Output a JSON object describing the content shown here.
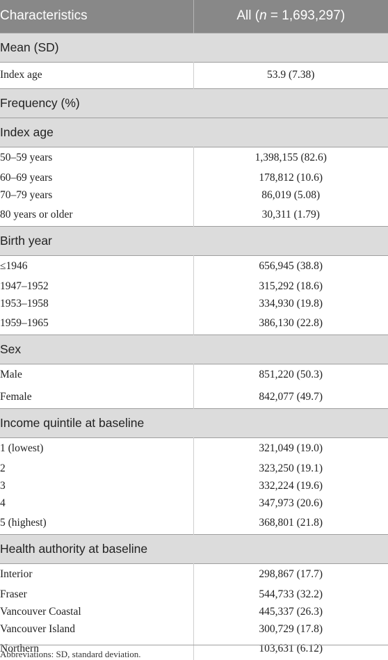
{
  "header": {
    "col1": "Characteristics",
    "col2_prefix": "All (",
    "col2_n": "n",
    "col2_suffix": " = 1,693,297)"
  },
  "mean_section": {
    "label": "Mean (SD)",
    "rows": [
      {
        "label": "Index age",
        "value": "53.9 (7.38)"
      }
    ]
  },
  "frequency_label": "Frequency (%)",
  "groups": [
    {
      "label": "Index age",
      "rows": [
        {
          "label": "50–59 years",
          "value": "1,398,155 (82.6)"
        },
        {
          "label": "60–69 years",
          "value": "178,812 (10.6)"
        },
        {
          "label": "70–79 years",
          "value": "86,019 (5.08)"
        },
        {
          "label": "80 years or older",
          "value": "30,311 (1.79)"
        }
      ]
    },
    {
      "label": "Birth year",
      "rows": [
        {
          "label": "≤1946",
          "value": "656,945 (38.8)"
        },
        {
          "label": "1947–1952",
          "value": "315,292 (18.6)"
        },
        {
          "label": "1953–1958",
          "value": "334,930 (19.8)"
        },
        {
          "label": "1959–1965",
          "value": "386,130 (22.8)"
        }
      ]
    },
    {
      "label": "Sex",
      "rows": [
        {
          "label": "Male",
          "value": "851,220 (50.3)"
        },
        {
          "label": "Female",
          "value": "842,077 (49.7)"
        }
      ]
    },
    {
      "label": "Income quintile at baseline",
      "rows": [
        {
          "label": "1 (lowest)",
          "value": "321,049 (19.0)"
        },
        {
          "label": "2",
          "value": "323,250 (19.1)"
        },
        {
          "label": "3",
          "value": "332,224 (19.6)"
        },
        {
          "label": "4",
          "value": "347,973 (20.6)"
        },
        {
          "label": "5 (highest)",
          "value": "368,801 (21.8)"
        }
      ]
    },
    {
      "label": "Health authority at baseline",
      "rows": [
        {
          "label": "Interior",
          "value": "298,867 (17.7)"
        },
        {
          "label": "Fraser",
          "value": "544,733 (32.2)"
        },
        {
          "label": "Vancouver Coastal",
          "value": "445,337 (26.3)"
        },
        {
          "label": "Vancouver Island",
          "value": "300,729 (17.8)"
        },
        {
          "label": "Northern",
          "value": "103,631 (6.12)"
        }
      ]
    }
  ],
  "footnote": "Abbreviations: SD, standard deviation."
}
